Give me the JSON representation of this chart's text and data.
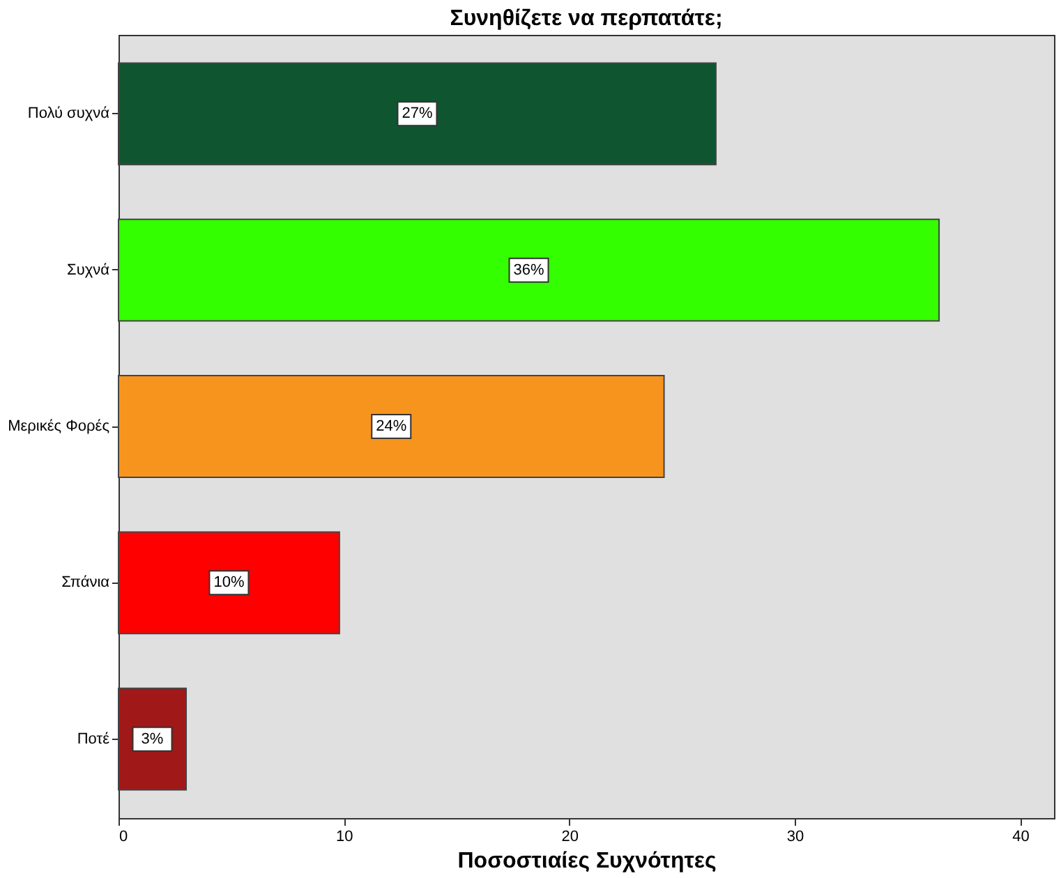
{
  "chart_data": {
    "type": "bar",
    "orientation": "horizontal",
    "title": "Συνηθίζετε να περπατάτε;",
    "xlabel": "Ποσοστιαίες Συχνότητες",
    "categories": [
      "Πολύ συχνά",
      "Συχνά",
      "Μερικές Φορές",
      "Σπάνια",
      "Ποτέ"
    ],
    "values": [
      26.5,
      36.4,
      24.2,
      9.8,
      3.0
    ],
    "colors": [
      "#0f5530",
      "#33ff00",
      "#f7941d",
      "#ff0000",
      "#a01818"
    ],
    "value_labels": [
      "27%",
      "36%",
      "24%",
      "10%",
      "3%"
    ],
    "xlim": [
      0,
      41.5
    ],
    "xticks": [
      0,
      10,
      20,
      30,
      40
    ],
    "grid": false
  }
}
